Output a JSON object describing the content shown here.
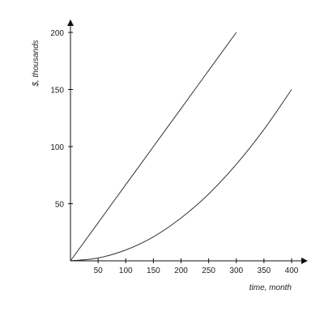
{
  "chart_data": {
    "type": "line",
    "xlabel": "time, month",
    "ylabel": "$, thousands",
    "xlim": [
      0,
      400
    ],
    "ylim": [
      0,
      200
    ],
    "x_ticks": [
      50,
      100,
      150,
      200,
      250,
      300,
      350,
      400
    ],
    "y_ticks": [
      50,
      100,
      150,
      200
    ],
    "grid": false,
    "series": [
      {
        "x": [
          0,
          50,
          100,
          150,
          200,
          250,
          300
        ],
        "y": [
          0,
          33.3,
          66.7,
          100,
          133.3,
          166.7,
          200
        ]
      },
      {
        "x": [
          0,
          50,
          100,
          150,
          200,
          250,
          300,
          350,
          400
        ],
        "y": [
          0,
          2.5,
          9.5,
          21,
          37.5,
          58.5,
          84.5,
          115,
          150
        ]
      }
    ],
    "colors": {
      "axis": "#111111",
      "line": "#333333",
      "text": "#222222"
    }
  }
}
